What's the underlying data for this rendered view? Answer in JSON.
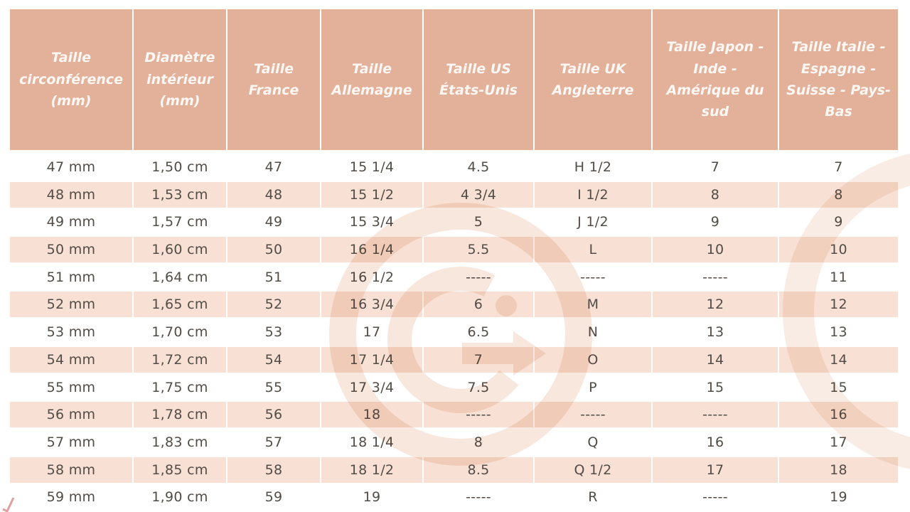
{
  "colors": {
    "header_bg": "#e3b09a",
    "header_text": "#fdf8f4",
    "row_alt_bg": "#f8e1d4",
    "row_bg": "#ffffff",
    "body_text": "#524c47",
    "watermark": "#efcfbc"
  },
  "watermark": {
    "description": "g-monogram-in-circle",
    "letter": "G"
  },
  "table": {
    "columns": [
      {
        "id": "circonference",
        "label": "Taille\ncirconférence\n(mm)"
      },
      {
        "id": "diametre",
        "label": "Diamètre\nintérieur\n(mm)"
      },
      {
        "id": "france",
        "label": "Taille\nFrance"
      },
      {
        "id": "allemagne",
        "label": "Taille\nAllemagne"
      },
      {
        "id": "us",
        "label": "Taille US\nÉtats-Unis"
      },
      {
        "id": "uk",
        "label": "Taille UK\nAngleterre"
      },
      {
        "id": "japon",
        "label": "Taille Japon -\nInde -\nAmérique du\nsud"
      },
      {
        "id": "italie",
        "label": "Taille Italie -\nEspagne -\nSuisse - Pays-\nBas"
      }
    ],
    "rows": [
      [
        "47 mm",
        "1,50 cm",
        "47",
        "15 1/4",
        "4.5",
        "H 1/2",
        "7",
        "7"
      ],
      [
        "48 mm",
        "1,53 cm",
        "48",
        "15 1/2",
        "4 3/4",
        "I 1/2",
        "8",
        "8"
      ],
      [
        "49 mm",
        "1,57 cm",
        "49",
        "15 3/4",
        "5",
        "J 1/2",
        "9",
        "9"
      ],
      [
        "50 mm",
        "1,60 cm",
        "50",
        "16 1/4",
        "5.5",
        "L",
        "10",
        "10"
      ],
      [
        "51 mm",
        "1,64 cm",
        "51",
        "16 1/2",
        "-----",
        "-----",
        "-----",
        "11"
      ],
      [
        "52 mm",
        "1,65 cm",
        "52",
        "16 3/4",
        "6",
        "M",
        "12",
        "12"
      ],
      [
        "53 mm",
        "1,70 cm",
        "53",
        "17",
        "6.5",
        "N",
        "13",
        "13"
      ],
      [
        "54 mm",
        "1,72 cm",
        "54",
        "17 1/4",
        "7",
        "O",
        "14",
        "14"
      ],
      [
        "55 mm",
        "1,75 cm",
        "55",
        "17 3/4",
        "7.5",
        "P",
        "15",
        "15"
      ],
      [
        "56 mm",
        "1,78 cm",
        "56",
        "18",
        "-----",
        "-----",
        "-----",
        "16"
      ],
      [
        "57 mm",
        "1,83 cm",
        "57",
        "18 1/4",
        "8",
        "Q",
        "16",
        "17"
      ],
      [
        "58 mm",
        "1,85 cm",
        "58",
        "18 1/2",
        "8.5",
        "Q 1/2",
        "17",
        "18"
      ],
      [
        "59 mm",
        "1,90 cm",
        "59",
        "19",
        "-----",
        "R",
        "-----",
        "19"
      ]
    ]
  }
}
